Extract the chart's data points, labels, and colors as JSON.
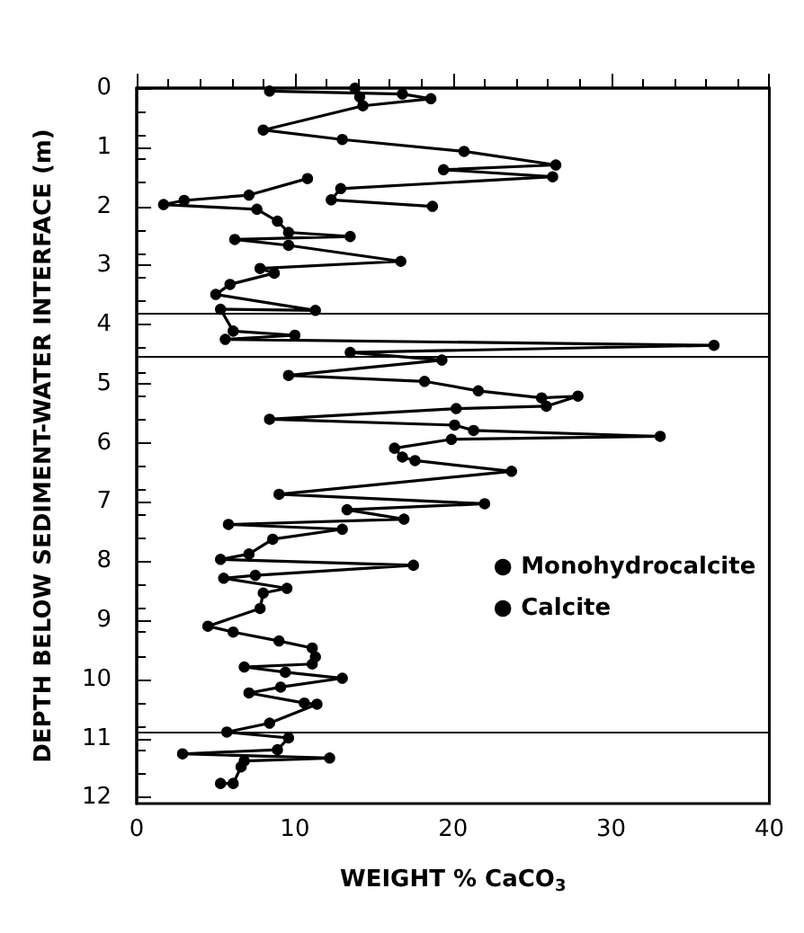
{
  "chart_data": {
    "type": "line",
    "xlabel": "WEIGHT % CaCO$_{3}$",
    "ylabel": "DEPTH BELOW SEDIMENT-WATER INTERFACE (m)",
    "xlim": [
      0,
      40
    ],
    "xticks": [
      0,
      10,
      20,
      30,
      40
    ],
    "ylim": [
      12.1,
      0
    ],
    "yticks": [
      0,
      1,
      2,
      3,
      4,
      5,
      6,
      7,
      8,
      9,
      10,
      11,
      12
    ],
    "legend": "right",
    "grid": false,
    "marker": "circle",
    "line_style": "solid",
    "ref_lines": [
      {
        "axis": "y",
        "value": 3.8,
        "color": "#000000"
      },
      {
        "axis": "y",
        "value": 4.55,
        "color": "#000000"
      },
      {
        "axis": "y",
        "value": 10.9,
        "color": "#000000"
      }
    ],
    "series": [
      {
        "name": "Monohydrocalcite",
        "color": "#000000",
        "x": [
          8.4,
          16.8,
          18.6,
          14.3,
          8.0,
          13.0,
          20.7,
          26.5,
          19.4,
          26.3,
          12.9,
          12.3,
          18.7
        ],
        "values": [
          0.05,
          0.1,
          0.18,
          0.3,
          0.71,
          0.87,
          1.07,
          1.3,
          1.38,
          1.5,
          1.7,
          1.89,
          2.0
        ]
      },
      {
        "name": "Calcite",
        "color": "#000000",
        "x": [
          13.8,
          14.1,
          null,
          10.8,
          7.1,
          3.0,
          1.7,
          7.6,
          8.9,
          9.6,
          13.5,
          6.2,
          9.6,
          16.7,
          7.8,
          8.7,
          5.9,
          5.0,
          11.3,
          5.3,
          6.1,
          10.0,
          5.6,
          36.5,
          13.5,
          19.3,
          9.6,
          18.2,
          21.6,
          25.6,
          27.9,
          25.9,
          20.2,
          8.4,
          20.1,
          21.3,
          33.1,
          19.9,
          16.3,
          16.8,
          17.6,
          23.7,
          9.0,
          22.0,
          13.3,
          16.9,
          5.8,
          13.0,
          8.6,
          7.1,
          5.3,
          17.5,
          7.5,
          5.5,
          9.5,
          8.0,
          7.8,
          4.5,
          6.1,
          9.0,
          11.1,
          11.3,
          11.1,
          6.8,
          9.4,
          13.0,
          9.1,
          7.1,
          10.6,
          11.4,
          8.4,
          5.7,
          9.6,
          8.9,
          2.9,
          12.2,
          6.8,
          6.6,
          6.1,
          5.3
        ],
        "values": [
          0,
          0.15,
          null,
          1.53,
          1.81,
          1.9,
          1.97,
          2.05,
          2.25,
          2.44,
          2.51,
          2.56,
          2.66,
          2.93,
          3.05,
          3.13,
          3.32,
          3.49,
          3.76,
          3.74,
          4.11,
          4.18,
          4.25,
          4.35,
          4.47,
          4.6,
          4.86,
          4.96,
          5.12,
          5.24,
          5.21,
          5.38,
          5.42,
          5.6,
          5.7,
          5.79,
          5.89,
          5.94,
          6.09,
          6.24,
          6.3,
          6.48,
          6.87,
          7.03,
          7.13,
          7.29,
          7.38,
          7.46,
          7.63,
          7.88,
          7.97,
          8.07,
          8.24,
          8.29,
          8.46,
          8.54,
          8.8,
          9.1,
          9.2,
          9.35,
          9.47,
          9.62,
          9.74,
          9.79,
          9.88,
          9.98,
          10.13,
          10.23,
          10.4,
          10.42,
          10.74,
          10.89,
          10.99,
          11.19,
          11.26,
          11.33,
          11.38,
          11.48,
          11.76,
          11.76
        ]
      }
    ]
  }
}
